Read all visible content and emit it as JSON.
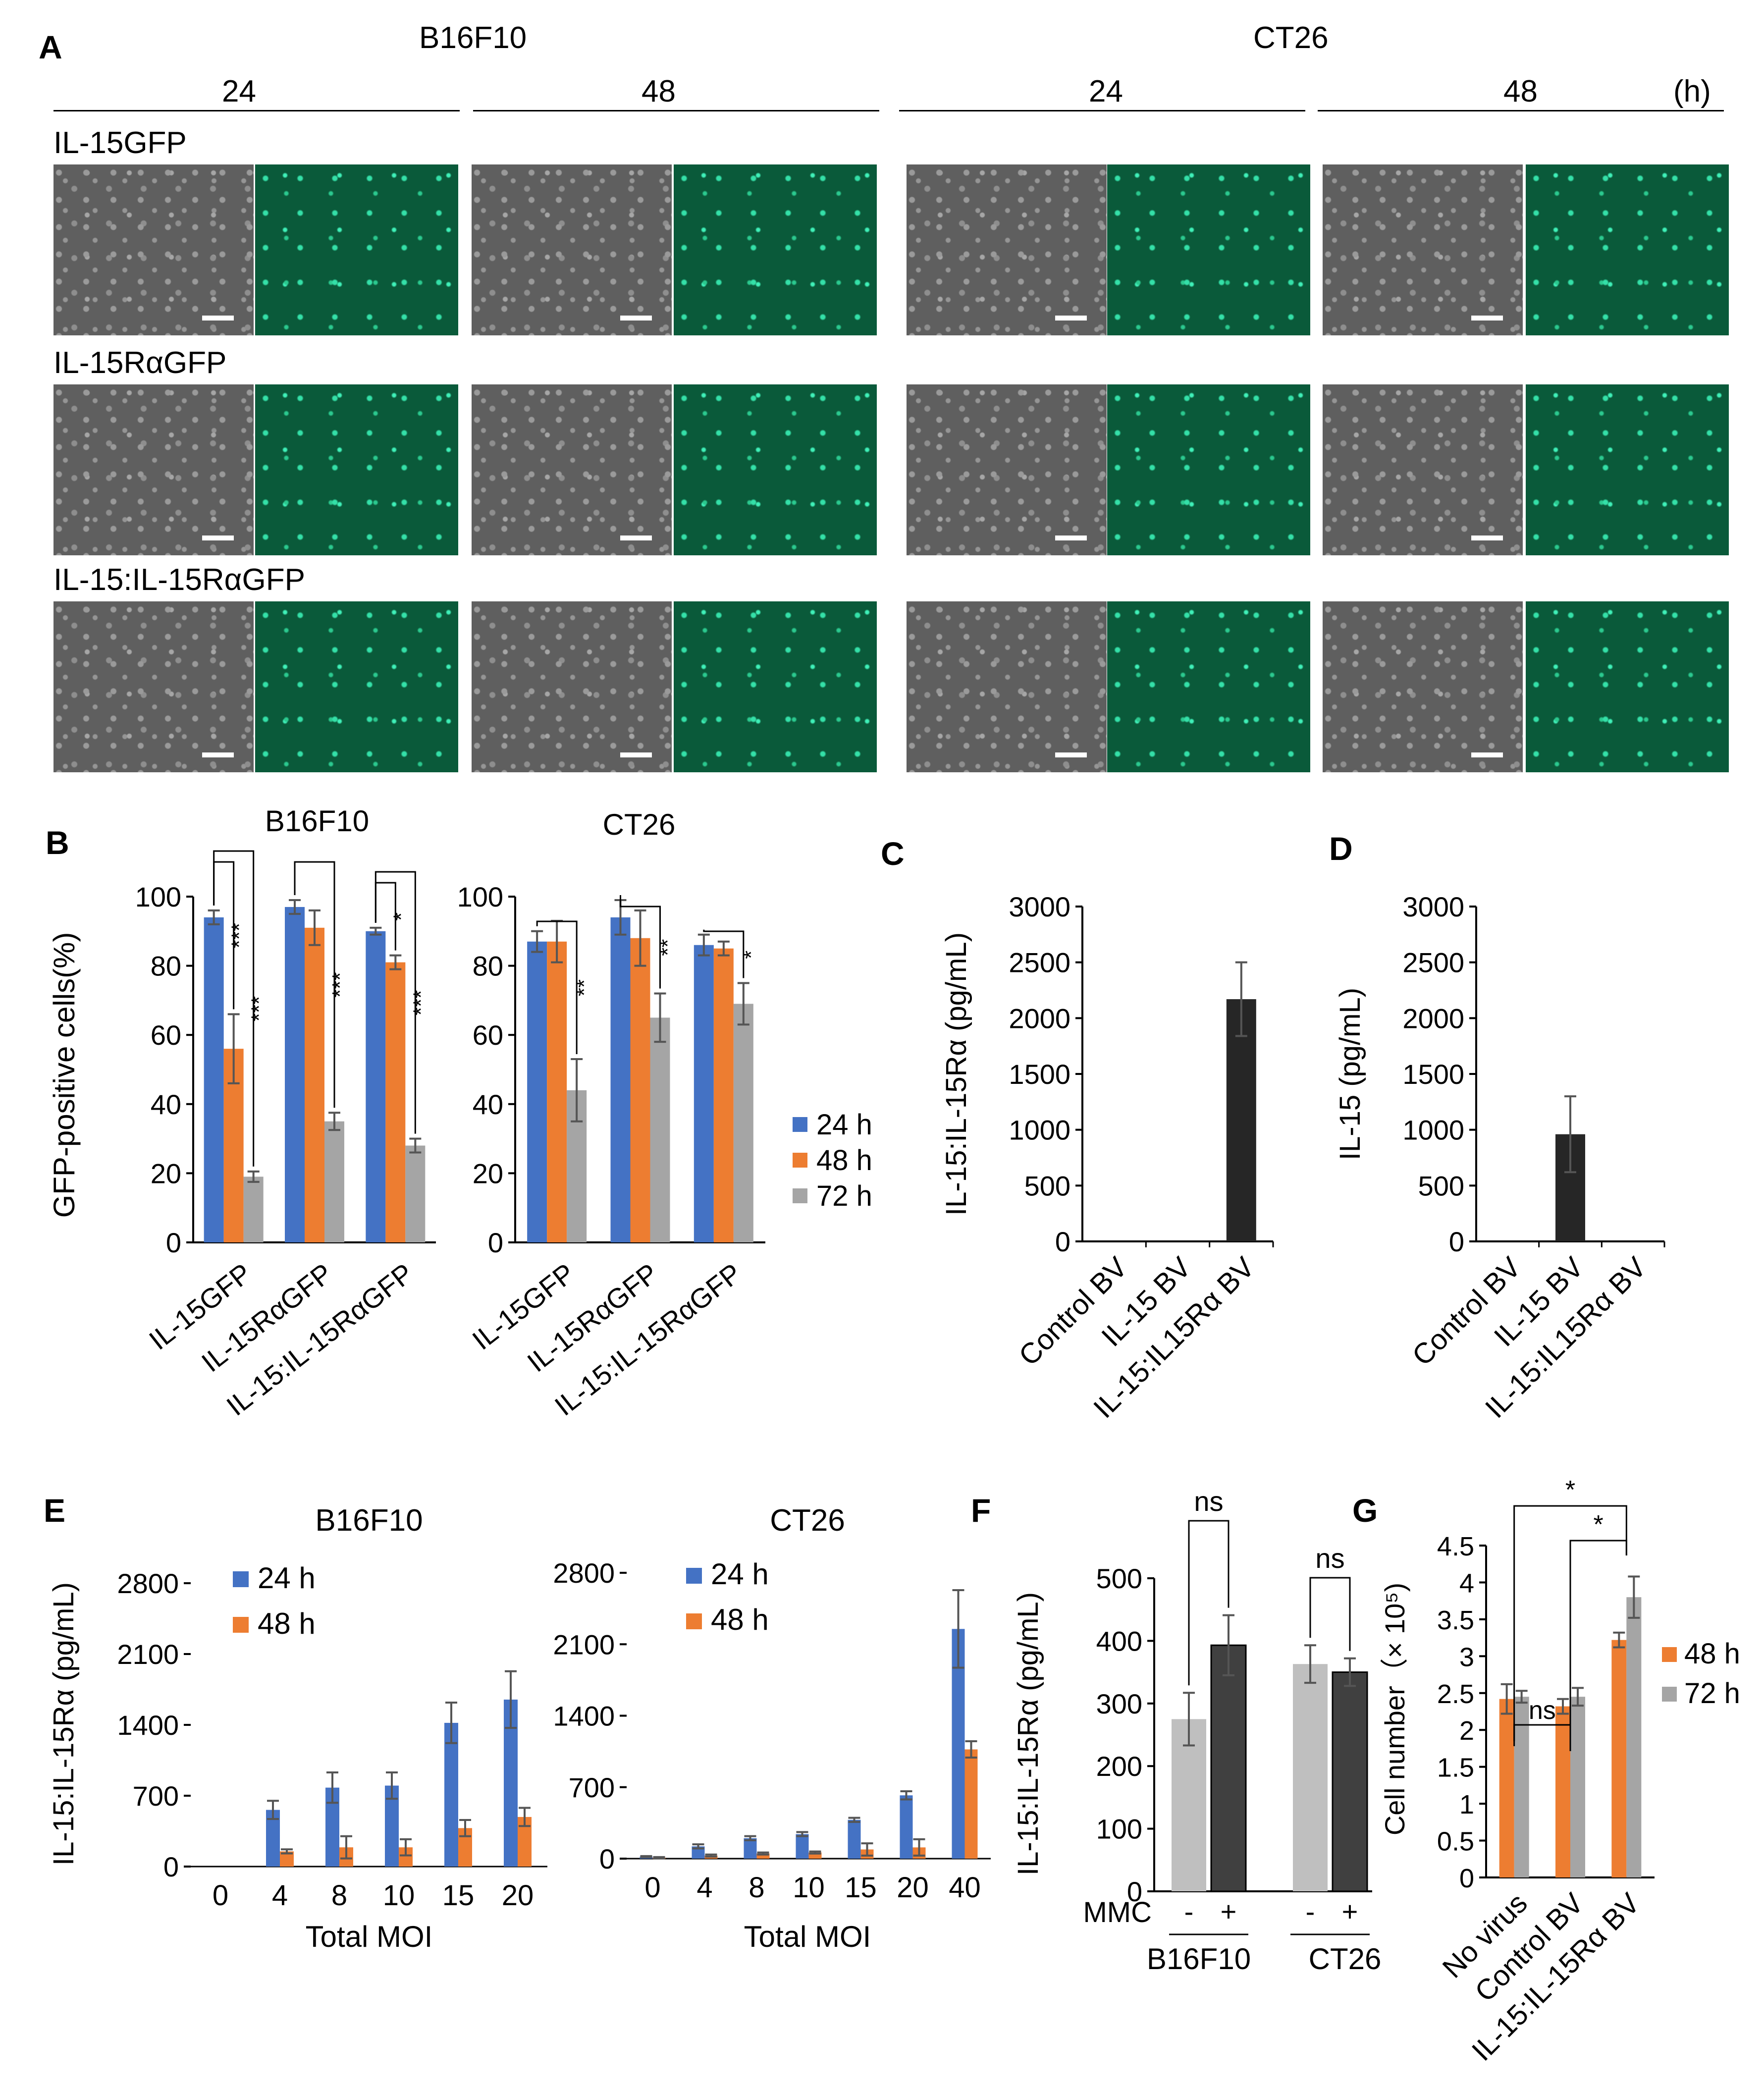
{
  "panel_a": {
    "label": "A",
    "groups": [
      {
        "cell": "B16F10",
        "times": [
          "24",
          "48"
        ]
      },
      {
        "cell": "CT26",
        "times": [
          "24",
          "48"
        ]
      }
    ],
    "unit": "(h)",
    "rows": [
      "IL-15GFP",
      "IL-15RαGFP",
      "IL-15:IL-15RαGFP"
    ]
  },
  "labels": {
    "B": "B",
    "C": "C",
    "D": "D",
    "E": "E",
    "F": "F",
    "G": "G"
  },
  "colors": {
    "blue": "#4472C4",
    "orange": "#ED7D31",
    "gray": "#A5A5A5",
    "lightgray": "#BFBFBF",
    "dark": "#262626"
  },
  "chart_data": [
    {
      "id": "B-left",
      "type": "bar",
      "title": "B16F10",
      "ylabel": "GFP-positive cells(%)",
      "ylim": [
        0,
        100
      ],
      "yticks": [
        0,
        20,
        40,
        60,
        80,
        100
      ],
      "categories": [
        "IL-15GFP",
        "IL-15RαGFP",
        "IL-15:IL-15RαGFP"
      ],
      "series": [
        {
          "name": "24 h",
          "color": "#4472C4",
          "values": [
            94,
            97,
            90
          ],
          "errors": [
            2,
            2,
            1
          ]
        },
        {
          "name": "48 h",
          "color": "#ED7D31",
          "values": [
            56,
            91,
            81
          ],
          "errors": [
            10,
            5,
            2
          ]
        },
        {
          "name": "72 h",
          "color": "#A5A5A5",
          "values": [
            19,
            35,
            28
          ],
          "errors": [
            1.5,
            2.5,
            2
          ]
        }
      ],
      "significance": [
        {
          "cat": 0,
          "pair": "24-48",
          "label": "***"
        },
        {
          "cat": 0,
          "pair": "24-72",
          "label": "***"
        },
        {
          "cat": 1,
          "pair": "24-72",
          "label": "***"
        },
        {
          "cat": 2,
          "pair": "24-48",
          "label": "*"
        },
        {
          "cat": 2,
          "pair": "24-72",
          "label": "***"
        }
      ]
    },
    {
      "id": "B-right",
      "type": "bar",
      "title": "CT26",
      "ylim": [
        0,
        100
      ],
      "yticks": [
        0,
        20,
        40,
        60,
        80,
        100
      ],
      "categories": [
        "IL-15GFP",
        "IL-15RαGFP",
        "IL-15:IL-15RαGFP"
      ],
      "series": [
        {
          "name": "24 h",
          "color": "#4472C4",
          "values": [
            87,
            94,
            86
          ],
          "errors": [
            3,
            5,
            3
          ]
        },
        {
          "name": "48 h",
          "color": "#ED7D31",
          "values": [
            87,
            88,
            85
          ],
          "errors": [
            6,
            8,
            2
          ]
        },
        {
          "name": "72 h",
          "color": "#A5A5A5",
          "values": [
            44,
            65,
            69
          ],
          "errors": [
            9,
            7,
            6
          ]
        }
      ],
      "legend": [
        "24 h",
        "48 h",
        "72 h"
      ],
      "significance": [
        {
          "cat": 0,
          "pair": "24-72",
          "label": "**"
        },
        {
          "cat": 1,
          "pair": "24-72",
          "label": "**"
        },
        {
          "cat": 2,
          "pair": "24-72",
          "label": "*"
        }
      ]
    },
    {
      "id": "C",
      "type": "bar",
      "ylabel": "IL-15:IL-15Rα (pg/mL)",
      "ylim": [
        0,
        3000
      ],
      "yticks": [
        0,
        500,
        1000,
        1500,
        2000,
        2500,
        3000
      ],
      "categories": [
        "Control BV",
        "IL-15 BV",
        "IL-15:IL15Rα BV"
      ],
      "values": [
        0,
        0,
        2170
      ],
      "errors": [
        0,
        0,
        330
      ]
    },
    {
      "id": "D",
      "type": "bar",
      "ylabel": "IL-15 (pg/mL)",
      "ylim": [
        0,
        3000
      ],
      "yticks": [
        0,
        500,
        1000,
        1500,
        2000,
        2500,
        3000
      ],
      "categories": [
        "Control BV",
        "IL-15 BV",
        "IL-15:IL15Rα BV"
      ],
      "values": [
        0,
        960,
        0
      ],
      "errors": [
        0,
        340,
        0
      ]
    },
    {
      "id": "E-left",
      "type": "bar",
      "title": "B16F10",
      "ylabel": "IL-15:IL-15Rα (pg/mL)",
      "xlabel": "Total MOI",
      "ylim": [
        0,
        2800
      ],
      "yticks": [
        0,
        700,
        1400,
        2100,
        2800
      ],
      "categories": [
        "0",
        "4",
        "8",
        "10",
        "15",
        "20"
      ],
      "series": [
        {
          "name": "24 h",
          "color": "#4472C4",
          "values": [
            0,
            560,
            780,
            800,
            1420,
            1650
          ],
          "errors": [
            0,
            90,
            150,
            130,
            200,
            280
          ]
        },
        {
          "name": "48 h",
          "color": "#ED7D31",
          "values": [
            0,
            150,
            190,
            190,
            380,
            490
          ],
          "errors": [
            0,
            20,
            110,
            80,
            80,
            90
          ]
        }
      ]
    },
    {
      "id": "E-right",
      "type": "bar",
      "title": "CT26",
      "xlabel": "Total MOI",
      "ylim": [
        0,
        2800
      ],
      "yticks": [
        0,
        700,
        1400,
        2100,
        2800
      ],
      "categories": [
        "0",
        "4",
        "8",
        "10",
        "15",
        "20",
        "40"
      ],
      "series": [
        {
          "name": "24 h",
          "color": "#4472C4",
          "values": [
            20,
            120,
            200,
            240,
            380,
            620,
            2250
          ],
          "errors": [
            5,
            20,
            20,
            20,
            20,
            40,
            380
          ]
        },
        {
          "name": "48 h",
          "color": "#ED7D31",
          "values": [
            10,
            30,
            50,
            60,
            90,
            110,
            1070
          ],
          "errors": [
            5,
            10,
            10,
            10,
            60,
            80,
            80
          ]
        }
      ]
    },
    {
      "id": "F",
      "type": "bar",
      "ylabel": "IL-15:IL-15Rα (pg/mL)",
      "ylim": [
        0,
        500
      ],
      "yticks": [
        0,
        100,
        200,
        300,
        400,
        500
      ],
      "categories": [
        "-",
        "+",
        "-",
        "+"
      ],
      "groups": [
        "B16F10",
        "CT26"
      ],
      "xprefix": "MMC",
      "values": [
        275,
        393,
        363,
        350
      ],
      "errors": [
        42,
        48,
        30,
        22
      ],
      "colors": [
        "#BFBFBF",
        "#404040",
        "#BFBFBF",
        "#404040"
      ],
      "significance": [
        {
          "group": 0,
          "label": "ns"
        },
        {
          "group": 1,
          "label": "ns"
        }
      ]
    },
    {
      "id": "G",
      "type": "bar",
      "ylabel": "Cell number（× 10⁵)",
      "ylim": [
        0,
        4.5
      ],
      "yticks": [
        0,
        0.5,
        1,
        1.5,
        2,
        2.5,
        3,
        3.5,
        4,
        4.5
      ],
      "categories": [
        "No virus",
        "Control BV",
        "IL-15:IL-15Rα BV"
      ],
      "series": [
        {
          "name": "48 h",
          "color": "#ED7D31",
          "values": [
            2.42,
            2.32,
            3.22
          ],
          "errors": [
            0.2,
            0.1,
            0.1
          ]
        },
        {
          "name": "72 h",
          "color": "#A5A5A5",
          "values": [
            2.45,
            2.45,
            3.8
          ],
          "errors": [
            0.08,
            0.12,
            0.28
          ]
        }
      ],
      "significance": [
        {
          "from": 0,
          "to": 2,
          "label": "*"
        },
        {
          "from": 1,
          "to": 2,
          "label": "*"
        },
        {
          "from": 0,
          "to": 1,
          "label": "ns"
        }
      ]
    }
  ]
}
